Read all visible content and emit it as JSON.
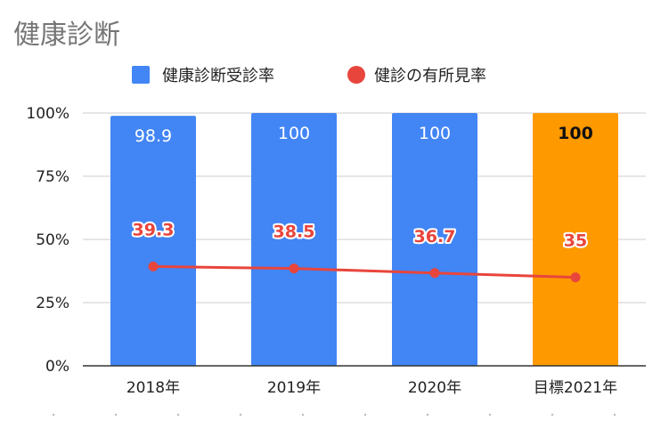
{
  "chart_data": {
    "type": "bar",
    "title": "健康診断",
    "categories": [
      "2018年",
      "2019年",
      "2020年",
      "目標2021年"
    ],
    "series": [
      {
        "name": "健康診断受診率",
        "type": "bar",
        "values": [
          98.9,
          100,
          100,
          100
        ],
        "labels": [
          "98.9",
          "100",
          "100",
          "100"
        ],
        "color": "#4285f4",
        "highlight_color": "#ff9900",
        "highlight_index": 3
      },
      {
        "name": "健診の有所見率",
        "type": "line",
        "values": [
          39.3,
          38.5,
          36.7,
          35
        ],
        "labels": [
          "39.3",
          "38.5",
          "36.7",
          "35"
        ],
        "color": "#e8453c"
      }
    ],
    "yticks": [
      "0%",
      "25%",
      "50%",
      "75%",
      "100%"
    ],
    "ylim": [
      0,
      100
    ],
    "grid": true,
    "legend": "top-center"
  }
}
